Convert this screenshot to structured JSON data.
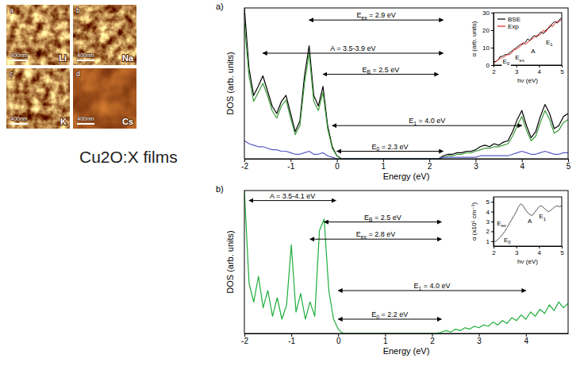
{
  "images": [
    {
      "letter": "a",
      "element": "Li",
      "scale_bar": "400nm"
    },
    {
      "letter": "b",
      "element": "Na",
      "scale_bar": "400nm"
    },
    {
      "letter": "c",
      "element": "K",
      "scale_bar": "400nm"
    },
    {
      "letter": "d",
      "element": "Cs",
      "scale_bar": "400nm"
    }
  ],
  "caption": "Cu2O:X films",
  "chart_data": [
    {
      "type": "line",
      "panel": "a)",
      "x_label": "Energy (eV)",
      "y_label": "DOS (arb. units)",
      "x": [
        -2,
        -1.9,
        -1.8,
        -1.7,
        -1.6,
        -1.5,
        -1.4,
        -1.3,
        -1.2,
        -1.1,
        -1,
        -0.9,
        -0.8,
        -0.7,
        -0.6,
        -0.5,
        -0.4,
        -0.3,
        -0.2,
        -0.1,
        0,
        0.1,
        0.2,
        0.3,
        0.4,
        0.5,
        0.6,
        0.7,
        0.8,
        0.9,
        1,
        1.1,
        1.2,
        1.3,
        1.4,
        1.5,
        1.6,
        1.7,
        1.8,
        1.9,
        2,
        2.1,
        2.2,
        2.3,
        2.4,
        2.5,
        2.6,
        2.7,
        2.8,
        2.9,
        3,
        3.1,
        3.2,
        3.3,
        3.4,
        3.5,
        3.6,
        3.7,
        3.8,
        3.9,
        4,
        4.1,
        4.2,
        4.3,
        4.4,
        4.5,
        4.6,
        4.7,
        4.8,
        4.9,
        5
      ],
      "series": [
        {
          "color": "#000000",
          "values": [
            100,
            60,
            42,
            48,
            55,
            45,
            35,
            30,
            38,
            42,
            30,
            18,
            25,
            55,
            75,
            42,
            35,
            48,
            22,
            8,
            2,
            0,
            0,
            0,
            0,
            0,
            0,
            0,
            0,
            0,
            0,
            0,
            0,
            0,
            0,
            0,
            0,
            0,
            0,
            0,
            0,
            0,
            0,
            2,
            3,
            3,
            4,
            4,
            5,
            5,
            6,
            8,
            9,
            8,
            10,
            9,
            11,
            12,
            18,
            26,
            32,
            22,
            14,
            18,
            28,
            36,
            30,
            20,
            22,
            28,
            30
          ]
        },
        {
          "color": "#3a9a3a",
          "values": [
            90,
            55,
            38,
            44,
            50,
            42,
            32,
            27,
            35,
            39,
            27,
            16,
            22,
            50,
            70,
            38,
            32,
            44,
            20,
            7,
            2,
            0,
            0,
            0,
            0,
            0,
            0,
            0,
            0,
            0,
            0,
            0,
            0,
            0,
            0,
            0,
            0,
            0,
            0,
            0,
            0,
            0,
            0,
            1,
            2,
            2,
            3,
            3,
            4,
            4,
            5,
            6,
            7,
            7,
            8,
            8,
            9,
            10,
            15,
            22,
            28,
            19,
            12,
            15,
            24,
            32,
            26,
            17,
            19,
            24,
            26
          ]
        },
        {
          "color": "#5a5ac8",
          "values": [
            12,
            10,
            9,
            8,
            8,
            7,
            6,
            6,
            5,
            5,
            4,
            3,
            3,
            4,
            5,
            3,
            3,
            4,
            2,
            1,
            0,
            0,
            0,
            0,
            0,
            0,
            0,
            0,
            0,
            0,
            0,
            0,
            0,
            0,
            0,
            0,
            0,
            0,
            0,
            0,
            0,
            0,
            0,
            1,
            1,
            1,
            1,
            1,
            1,
            1,
            1,
            2,
            2,
            2,
            2,
            2,
            2,
            2,
            3,
            4,
            5,
            4,
            3,
            3,
            4,
            5,
            4,
            3,
            3,
            4,
            4
          ]
        }
      ],
      "xlim": [
        -2,
        5
      ],
      "xticks": [
        -2,
        -1,
        0,
        1,
        2,
        3,
        4,
        5
      ],
      "ylim": [
        0,
        100
      ],
      "tick_labels": "x",
      "annotations": [
        {
          "label": "E",
          "subscript": "ex",
          "label_end": " = 2.9 eV",
          "x_from": -0.6,
          "x_to": 2.3,
          "y": 92
        },
        {
          "label": "A = 3.5-3.9 eV",
          "x_from": -1.6,
          "x_to": 2.3,
          "y": 70
        },
        {
          "label": "E",
          "subscript": "B",
          "label_end": " = 2.5 eV",
          "x_from": -0.3,
          "x_to": 2.2,
          "y": 56
        },
        {
          "label": "E",
          "subscript": "1",
          "label_end": " = 4.0 eV",
          "x_from": -0.1,
          "x_to": 4.0,
          "y": 22
        },
        {
          "label": "E",
          "subscript": "0",
          "label_end": " = 2.3 eV",
          "x_from": 0,
          "x_to": 2.3,
          "y": 5
        }
      ],
      "inset": {
        "type": "line",
        "x_label": "hν (eV)",
        "y_label": "α (arb. units)",
        "x": [
          2,
          2.1,
          2.2,
          2.3,
          2.4,
          2.5,
          2.6,
          2.7,
          2.8,
          2.9,
          3,
          3.1,
          3.2,
          3.3,
          3.4,
          3.5,
          3.6,
          3.7,
          3.8,
          3.9,
          4,
          4.1,
          4.2,
          4.3,
          4.4,
          4.5,
          4.6,
          4.7,
          4.8,
          4.9,
          5
        ],
        "series": [
          {
            "name": "BSE",
            "color": "#000000",
            "values": [
              2,
              2,
              3,
              5,
              5,
              6,
              6,
              7,
              8,
              9,
              10,
              11,
              12,
              12,
              13,
              15,
              14,
              16,
              17,
              16,
              18,
              19,
              18,
              20,
              21,
              22,
              24,
              25,
              24,
              26,
              27
            ]
          },
          {
            "name": "Exp",
            "color": "#e02020",
            "values": [
              1,
              2,
              3,
              4,
              4,
              5,
              6,
              6,
              7,
              9,
              9,
              10,
              11,
              13,
              12,
              13,
              14,
              15,
              16,
              17,
              17,
              18,
              20,
              19,
              21,
              23,
              22,
              24,
              25,
              25,
              26
            ]
          }
        ],
        "xlim": [
          2,
          5
        ],
        "xticks": [
          2,
          3,
          4,
          5
        ],
        "ylim": [
          0,
          30
        ],
        "yticks": [
          0,
          10,
          20,
          30
        ],
        "legend": "upper left",
        "annotations": [
          {
            "label": "E",
            "subscript": "0",
            "x": 2.4,
            "y": 1
          },
          {
            "label": "E",
            "subscript": "ex",
            "x": 2.95,
            "y": 3
          },
          {
            "label": "A",
            "x": 3.65,
            "y": 7
          },
          {
            "label": "E",
            "subscript": "1",
            "x": 4.3,
            "y": 12
          }
        ]
      }
    },
    {
      "type": "line",
      "panel": "b)",
      "x_label": "Energy (eV)",
      "y_label": "DOS (arb. units)",
      "x": [
        -2,
        -1.9,
        -1.8,
        -1.7,
        -1.6,
        -1.5,
        -1.4,
        -1.3,
        -1.2,
        -1.1,
        -1,
        -0.9,
        -0.8,
        -0.7,
        -0.6,
        -0.5,
        -0.4,
        -0.3,
        -0.2,
        -0.1,
        0,
        0.1,
        0.2,
        0.3,
        0.4,
        0.5,
        0.6,
        0.7,
        0.8,
        0.9,
        1,
        1.1,
        1.2,
        1.3,
        1.4,
        1.5,
        1.6,
        1.7,
        1.8,
        1.9,
        2,
        2.1,
        2.2,
        2.3,
        2.4,
        2.5,
        2.6,
        2.7,
        2.8,
        2.9,
        3,
        3.1,
        3.2,
        3.3,
        3.4,
        3.5,
        3.6,
        3.7,
        3.8,
        3.9,
        4,
        4.1,
        4.2,
        4.3,
        4.4,
        4.5,
        4.6,
        4.7,
        4.8,
        4.9
      ],
      "series": [
        {
          "color": "#1fae3c",
          "values": [
            100,
            35,
            22,
            40,
            18,
            30,
            12,
            25,
            10,
            20,
            62,
            15,
            28,
            10,
            22,
            12,
            72,
            80,
            30,
            10,
            3,
            0,
            0,
            0,
            0,
            0,
            0,
            0,
            0,
            0,
            0,
            0,
            0,
            0,
            0,
            0,
            0,
            0,
            0,
            0,
            0,
            0,
            1,
            2,
            1,
            3,
            2,
            4,
            3,
            5,
            4,
            6,
            5,
            8,
            6,
            9,
            7,
            11,
            9,
            13,
            10,
            15,
            12,
            17,
            14,
            20,
            16,
            22,
            18,
            21
          ]
        }
      ],
      "xlim": [
        -2,
        4.9
      ],
      "xticks": [
        -2,
        -1,
        0,
        1,
        2,
        3,
        4
      ],
      "ylim": [
        0,
        100
      ],
      "tick_labels": "x",
      "annotations": [
        {
          "label": "A = 3.5-4.1 eV",
          "x_from": -1.9,
          "x_to": -0.05,
          "y": 93
        },
        {
          "label": "E",
          "subscript": "B",
          "label_end": " = 2.5 eV",
          "x_from": -0.3,
          "x_to": 2.2,
          "y": 78
        },
        {
          "label": "E",
          "subscript": "ex",
          "label_end": " = 2.8 eV",
          "x_from": -0.6,
          "x_to": 2.2,
          "y": 66
        },
        {
          "label": "E",
          "subscript": "1",
          "label_end": " = 4.0 eV",
          "x_from": 0,
          "x_to": 4.0,
          "y": 30
        },
        {
          "label": "E",
          "subscript": "0",
          "label_end": " = 2.2 eV",
          "x_from": 0,
          "x_to": 2.2,
          "y": 10
        }
      ],
      "inset": {
        "type": "line",
        "x_label": "hν (eV)",
        "y_label": "α (x10⁵ cm⁻¹)",
        "x": [
          2,
          2.1,
          2.2,
          2.3,
          2.4,
          2.5,
          2.6,
          2.7,
          2.8,
          2.9,
          3,
          3.1,
          3.2,
          3.3,
          3.4,
          3.5,
          3.6,
          3.7,
          3.8,
          3.9,
          4,
          4.1,
          4.2,
          4.3,
          4.4,
          4.5,
          4.6,
          4.7,
          4.8,
          4.9,
          5
        ],
        "series": [
          {
            "color": "#555555",
            "values": [
              0.9,
              1,
              1.2,
              1.4,
              1.7,
              2,
              2.4,
              2.8,
              3.2,
              3.6,
              4,
              4.5,
              4.8,
              4.6,
              4.2,
              3.9,
              3.7,
              3.6,
              3.9,
              4.2,
              4.5,
              4.6,
              4.4,
              4.2,
              4,
              4.1,
              4.3,
              4.5,
              4.6,
              4.5,
              4.6
            ]
          }
        ],
        "xlim": [
          2,
          5
        ],
        "xticks": [
          2,
          3,
          4,
          5
        ],
        "ylim": [
          0.5,
          5.5
        ],
        "yticks": [
          1,
          2,
          3,
          4,
          5
        ],
        "annotations": [
          {
            "label": "E",
            "subscript": "0",
            "x": 2.45,
            "y": 0.9
          },
          {
            "label": "E",
            "subscript": "ex",
            "x": 2.15,
            "y": 2.6
          },
          {
            "label": "A",
            "x": 3.5,
            "y": 2.8
          },
          {
            "label": "E",
            "subscript": "1",
            "x": 4.0,
            "y": 3.3
          }
        ]
      }
    }
  ]
}
